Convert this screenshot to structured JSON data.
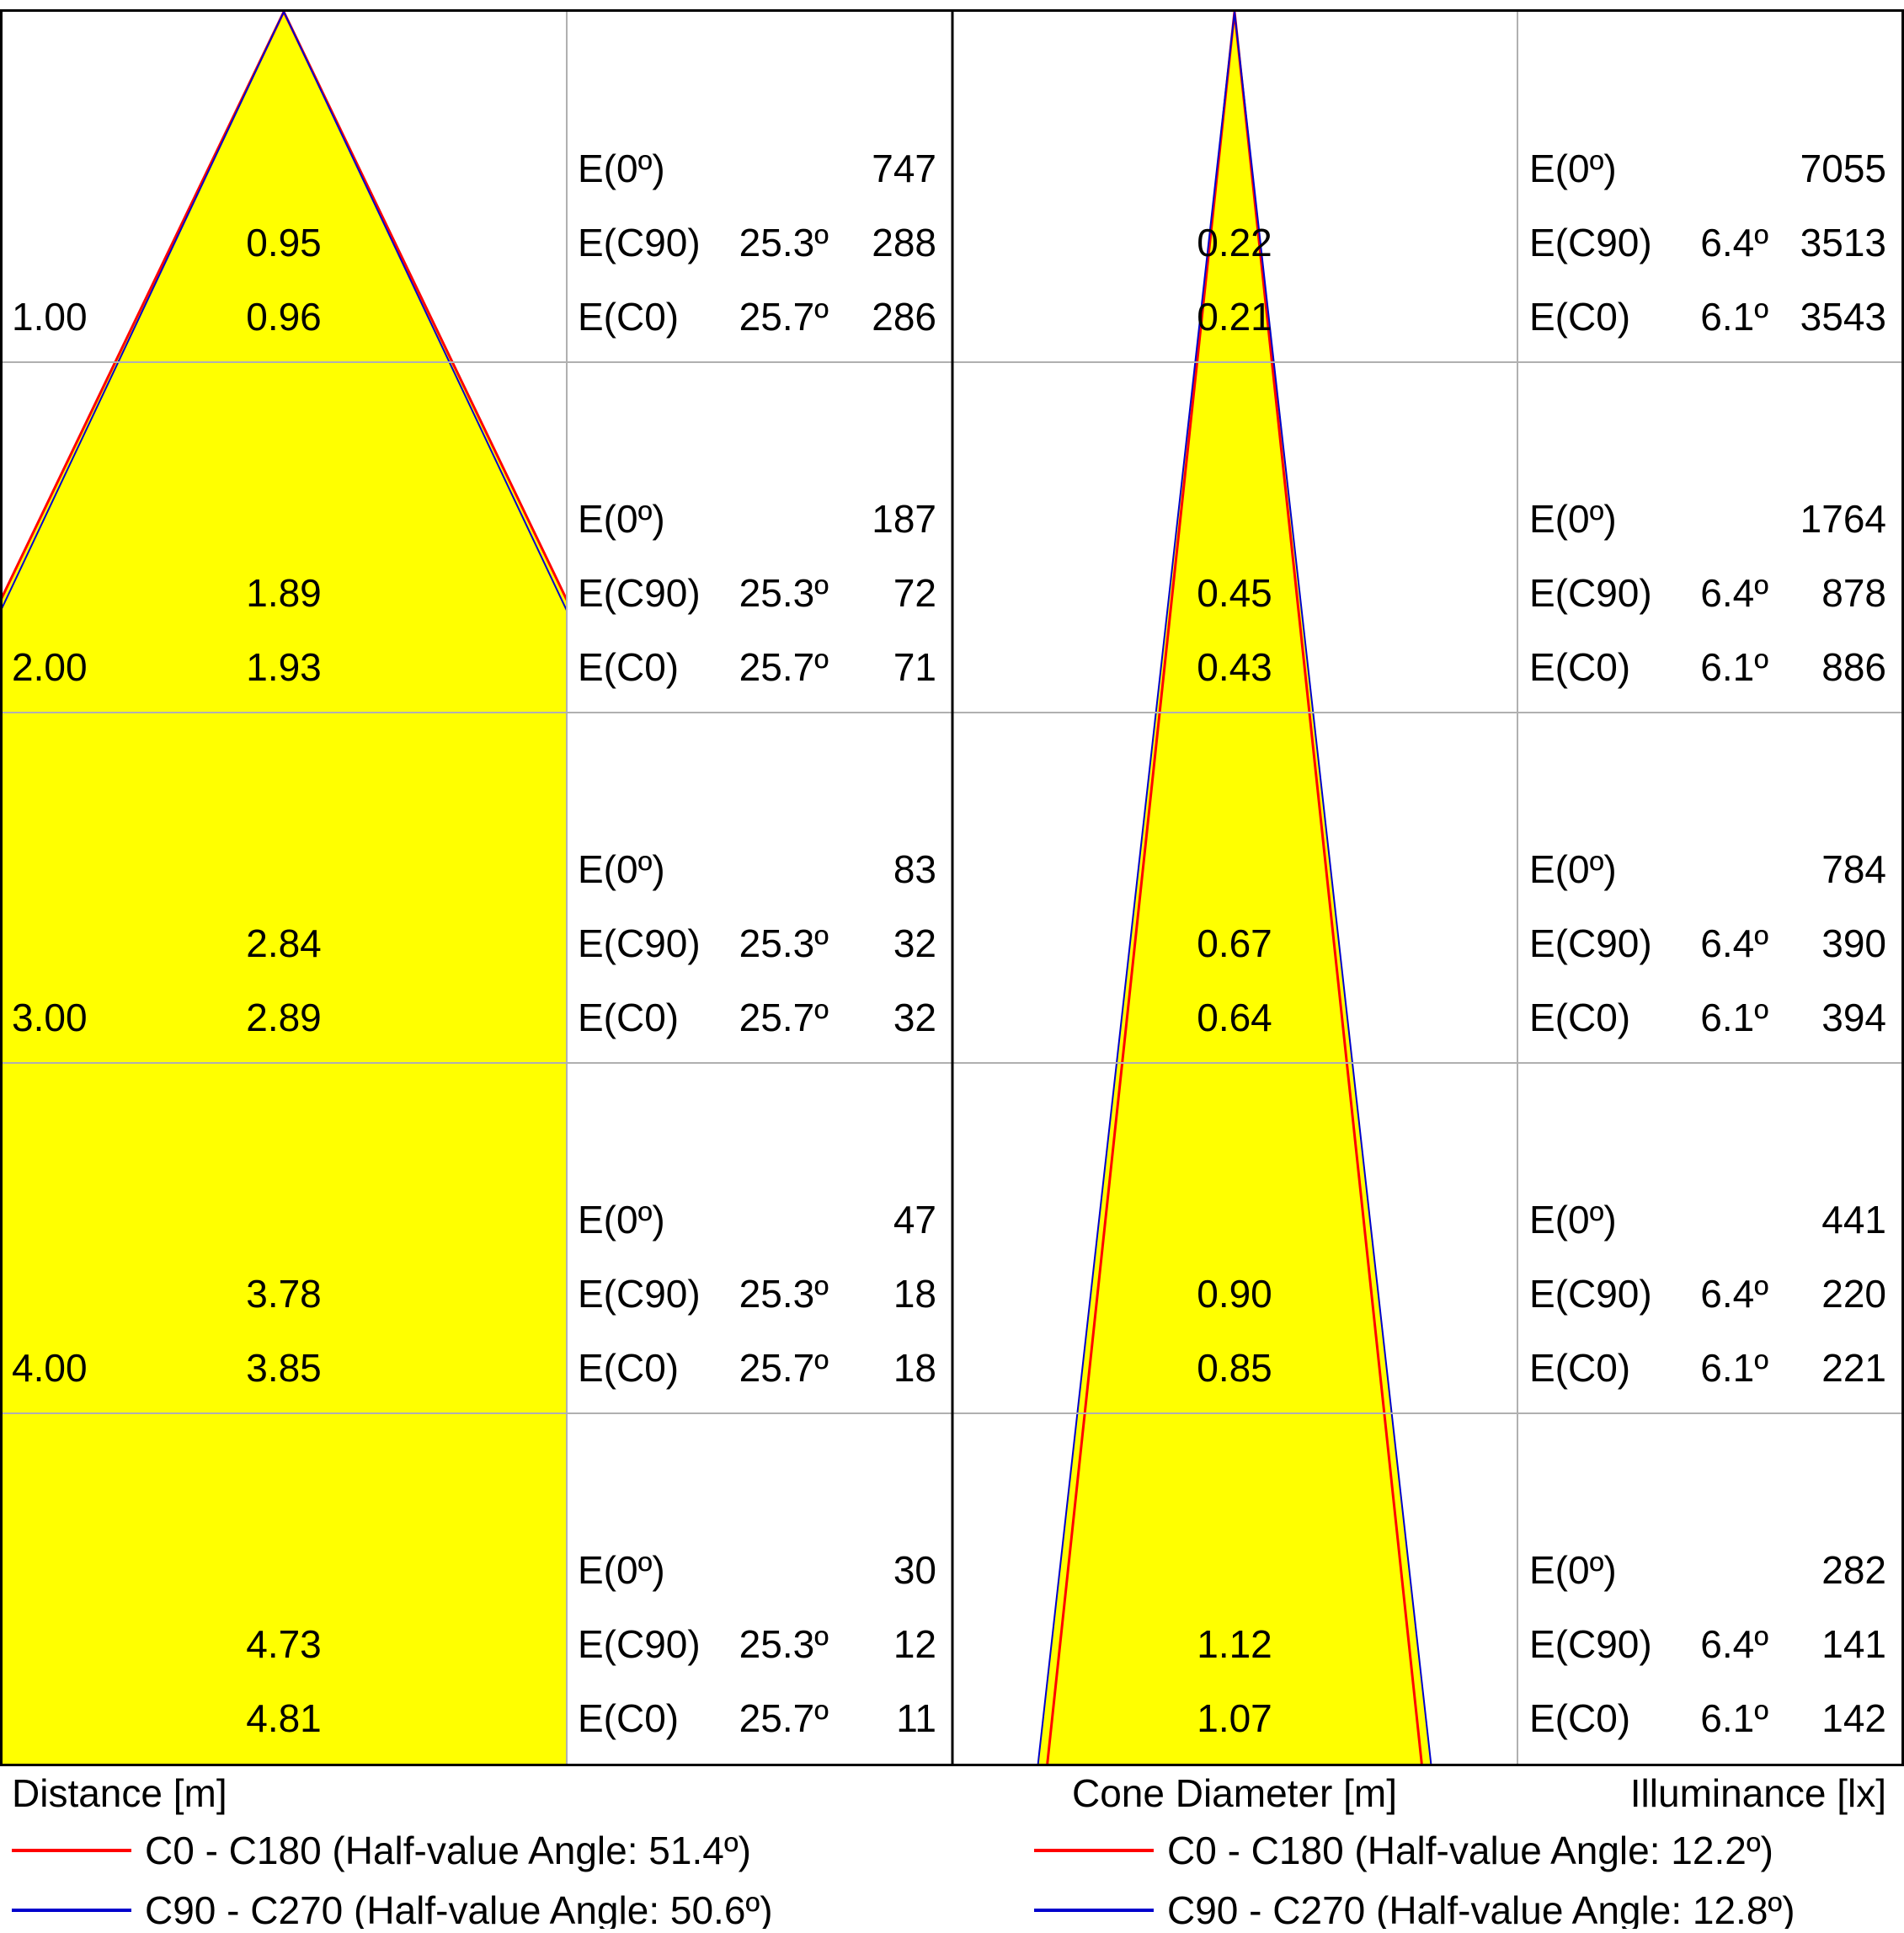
{
  "colors": {
    "beam_fill": "#ffff00",
    "c0_line": "#ff0000",
    "c90_line": "#0000cc",
    "grid": "#b0b0b0",
    "border": "#000000",
    "text": "#000000"
  },
  "chart_data": [
    {
      "type": "cone-diagram",
      "ylabel": "Distance [m]",
      "distances": [
        "1.00",
        "2.00",
        "3.00",
        "4.00",
        ""
      ],
      "half_value_angle_c0": 51.4,
      "half_value_angle_c90": 50.6,
      "rows": [
        {
          "c90_diameter": "0.95",
          "c0_diameter": "0.96",
          "e0_label": "E(0º)",
          "e0": "747",
          "ec90_label": "E(C90)",
          "ec90_angle": "25.3º",
          "ec90": "288",
          "ec0_label": "E(C0)",
          "ec0_angle": "25.7º",
          "ec0": "286"
        },
        {
          "c90_diameter": "1.89",
          "c0_diameter": "1.93",
          "e0_label": "E(0º)",
          "e0": "187",
          "ec90_label": "E(C90)",
          "ec90_angle": "25.3º",
          "ec90": "72",
          "ec0_label": "E(C0)",
          "ec0_angle": "25.7º",
          "ec0": "71"
        },
        {
          "c90_diameter": "2.84",
          "c0_diameter": "2.89",
          "e0_label": "E(0º)",
          "e0": "83",
          "ec90_label": "E(C90)",
          "ec90_angle": "25.3º",
          "ec90": "32",
          "ec0_label": "E(C0)",
          "ec0_angle": "25.7º",
          "ec0": "32"
        },
        {
          "c90_diameter": "3.78",
          "c0_diameter": "3.85",
          "e0_label": "E(0º)",
          "e0": "47",
          "ec90_label": "E(C90)",
          "ec90_angle": "25.3º",
          "ec90": "18",
          "ec0_label": "E(C0)",
          "ec0_angle": "25.7º",
          "ec0": "18"
        },
        {
          "c90_diameter": "4.73",
          "c0_diameter": "4.81",
          "e0_label": "E(0º)",
          "e0": "30",
          "ec90_label": "E(C90)",
          "ec90_angle": "25.3º",
          "ec90": "12",
          "ec0_label": "E(C0)",
          "ec0_angle": "25.7º",
          "ec0": "11"
        }
      ],
      "legend": [
        {
          "series": "c0",
          "label": "C0 - C180 (Half-value Angle: 51.4º)"
        },
        {
          "series": "c90",
          "label": "C90 - C270 (Half-value Angle: 50.6º)"
        }
      ]
    },
    {
      "type": "cone-diagram",
      "xlabel": "Cone Diameter [m]",
      "ylabel": "Illuminance [lx]",
      "half_value_angle_c0": 12.2,
      "half_value_angle_c90": 12.8,
      "rows": [
        {
          "c90_diameter": "0.22",
          "c0_diameter": "0.21",
          "e0_label": "E(0º)",
          "e0": "7055",
          "ec90_label": "E(C90)",
          "ec90_angle": "6.4º",
          "ec90": "3513",
          "ec0_label": "E(C0)",
          "ec0_angle": "6.1º",
          "ec0": "3543"
        },
        {
          "c90_diameter": "0.45",
          "c0_diameter": "0.43",
          "e0_label": "E(0º)",
          "e0": "1764",
          "ec90_label": "E(C90)",
          "ec90_angle": "6.4º",
          "ec90": "878",
          "ec0_label": "E(C0)",
          "ec0_angle": "6.1º",
          "ec0": "886"
        },
        {
          "c90_diameter": "0.67",
          "c0_diameter": "0.64",
          "e0_label": "E(0º)",
          "e0": "784",
          "ec90_label": "E(C90)",
          "ec90_angle": "6.4º",
          "ec90": "390",
          "ec0_label": "E(C0)",
          "ec0_angle": "6.1º",
          "ec0": "394"
        },
        {
          "c90_diameter": "0.90",
          "c0_diameter": "0.85",
          "e0_label": "E(0º)",
          "e0": "441",
          "ec90_label": "E(C90)",
          "ec90_angle": "6.4º",
          "ec90": "220",
          "ec0_label": "E(C0)",
          "ec0_angle": "6.1º",
          "ec0": "221"
        },
        {
          "c90_diameter": "1.12",
          "c0_diameter": "1.07",
          "e0_label": "E(0º)",
          "e0": "282",
          "ec90_label": "E(C90)",
          "ec90_angle": "6.4º",
          "ec90": "141",
          "ec0_label": "E(C0)",
          "ec0_angle": "6.1º",
          "ec0": "142"
        }
      ],
      "legend": [
        {
          "series": "c0",
          "label": "C0 - C180 (Half-value Angle: 12.2º)"
        },
        {
          "series": "c90",
          "label": "C90 - C270 (Half-value Angle: 12.8º)"
        }
      ]
    }
  ]
}
